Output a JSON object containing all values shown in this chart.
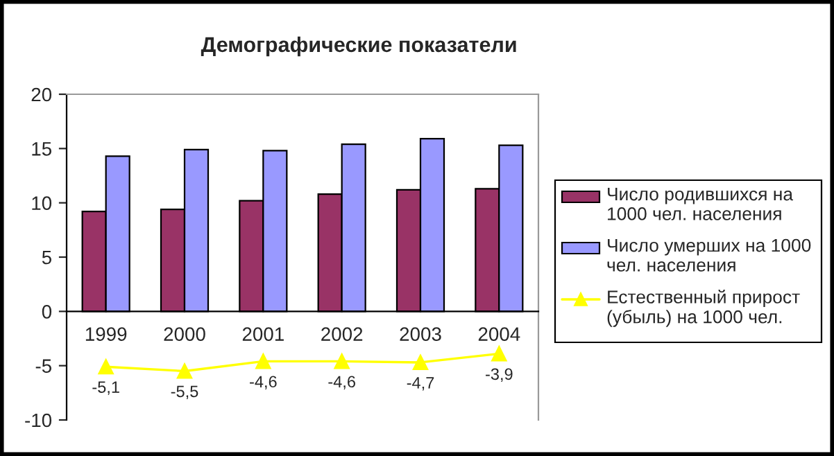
{
  "chart_data": {
    "type": "bar",
    "title": "Демографические показатели",
    "categories": [
      "1999",
      "2000",
      "2001",
      "2002",
      "2003",
      "2004"
    ],
    "series": [
      {
        "name": "Число родившихся на 1000 чел. населения",
        "color": "#993366",
        "values": [
          9.2,
          9.4,
          10.2,
          10.8,
          11.2,
          11.3
        ]
      },
      {
        "name": "Число умерших на 1000 чел. населения",
        "color": "#9999ff",
        "values": [
          14.3,
          14.9,
          14.8,
          15.4,
          15.9,
          15.3
        ]
      },
      {
        "name": "Естественный прирост (убыль) на 1000 чел.",
        "type": "line",
        "color": "#ffff00",
        "marker": "triangle",
        "values": [
          -5.1,
          -5.5,
          -4.6,
          -4.6,
          -4.7,
          -3.9
        ],
        "value_labels": [
          "-5,1",
          "-5,5",
          "-4,6",
          "-4,6",
          "-4,7",
          "-3,9"
        ]
      }
    ],
    "ylim": [
      -10,
      20
    ],
    "yticks": [
      -10,
      -5,
      0,
      5,
      10,
      15,
      20
    ],
    "grid": false,
    "legend": "right"
  }
}
